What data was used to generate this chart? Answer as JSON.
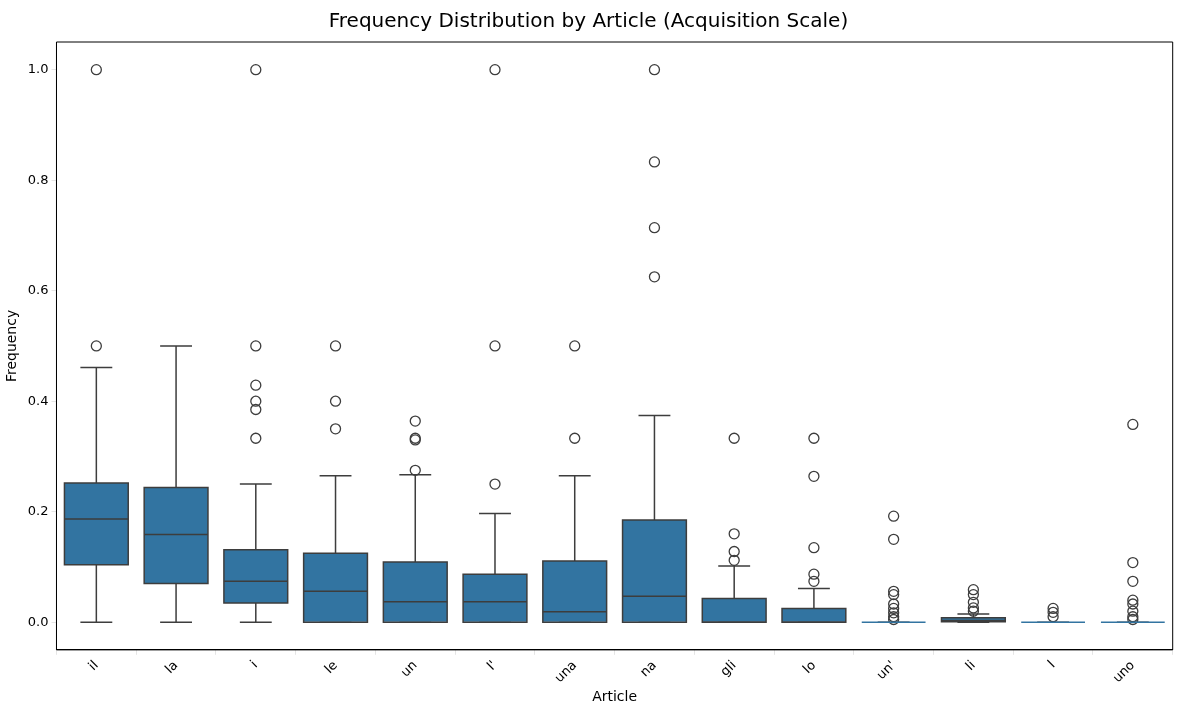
{
  "chart_data": {
    "type": "box",
    "title": "Frequency Distribution by Article (Acquisition Scale)",
    "xlabel": "Article",
    "ylabel": "Frequency",
    "color": "#3274a1",
    "categories": [
      "il",
      "la",
      "i",
      "le",
      "un",
      "l'",
      "una",
      "na",
      "gli",
      "lo",
      "un'",
      "li",
      "l",
      "uno"
    ],
    "ylim": [
      -0.05,
      1.05
    ],
    "yticks": [
      {
        "value": 0,
        "label": "0.0"
      },
      0.2,
      0.4,
      0.6,
      0.8,
      {
        "value": 1,
        "label": "1.0"
      }
    ],
    "boxes": [
      {
        "low": 0,
        "q1": 0.104,
        "median": 0.187,
        "q3": 0.252,
        "high": 0.461,
        "outliers": [
          0.5,
          1.0
        ]
      },
      {
        "low": 0,
        "q1": 0.07,
        "median": 0.159,
        "q3": 0.244,
        "high": 0.5
      },
      {
        "low": 0,
        "q1": 0.035,
        "median": 0.074,
        "q3": 0.131,
        "high": 0.25,
        "outliers": [
          0.333,
          0.385,
          0.4,
          0.429,
          0.5,
          1.0
        ]
      },
      {
        "low": 0,
        "q1": 0,
        "median": 0.056,
        "q3": 0.125,
        "high": 0.265,
        "outliers": [
          0.35,
          0.4,
          0.5
        ]
      },
      {
        "low": 0,
        "q1": 0,
        "median": 0.037,
        "q3": 0.109,
        "high": 0.267,
        "outliers": [
          0.275,
          0.33,
          0.333,
          0.364
        ]
      },
      {
        "low": 0,
        "q1": 0,
        "median": 0.037,
        "q3": 0.087,
        "high": 0.197,
        "outliers": [
          0.25,
          0.5,
          1.0
        ]
      },
      {
        "low": 0,
        "q1": 0,
        "median": 0.019,
        "q3": 0.111,
        "high": 0.265,
        "outliers": [
          0.333,
          0.5
        ]
      },
      {
        "low": 0,
        "q1": 0,
        "median": 0.047,
        "q3": 0.185,
        "high": 0.374,
        "outliers": [
          0.625,
          0.714,
          0.833,
          1.0
        ]
      },
      {
        "low": 0,
        "q1": 0,
        "median": 0,
        "q3": 0.043,
        "high": 0.102,
        "outliers": [
          0.112,
          0.128,
          0.16,
          0.333
        ]
      },
      {
        "low": 0,
        "q1": 0,
        "median": 0,
        "q3": 0.025,
        "high": 0.061,
        "outliers": [
          0.074,
          0.087,
          0.135,
          0.264,
          0.333
        ]
      },
      {
        "low": 0,
        "q1": 0,
        "median": 0,
        "q3": 0,
        "high": 0,
        "outliers": [
          0.005,
          0.01,
          0.017,
          0.025,
          0.033,
          0.05,
          0.056,
          0.15,
          0.192
        ]
      },
      {
        "low": 0,
        "q1": 0.001,
        "median": 0.003,
        "q3": 0.008,
        "high": 0.015,
        "outliers": [
          0.02,
          0.026,
          0.036,
          0.05,
          0.059
        ]
      },
      {
        "low": 0,
        "q1": 0,
        "median": 0,
        "q3": 0,
        "high": 0,
        "outliers": [
          0.01,
          0.018,
          0.025
        ]
      },
      {
        "low": 0,
        "q1": 0,
        "median": 0,
        "q3": 0,
        "high": 0,
        "outliers": [
          0.005,
          0.01,
          0.02,
          0.033,
          0.04,
          0.074,
          0.108,
          0.358
        ]
      }
    ]
  }
}
